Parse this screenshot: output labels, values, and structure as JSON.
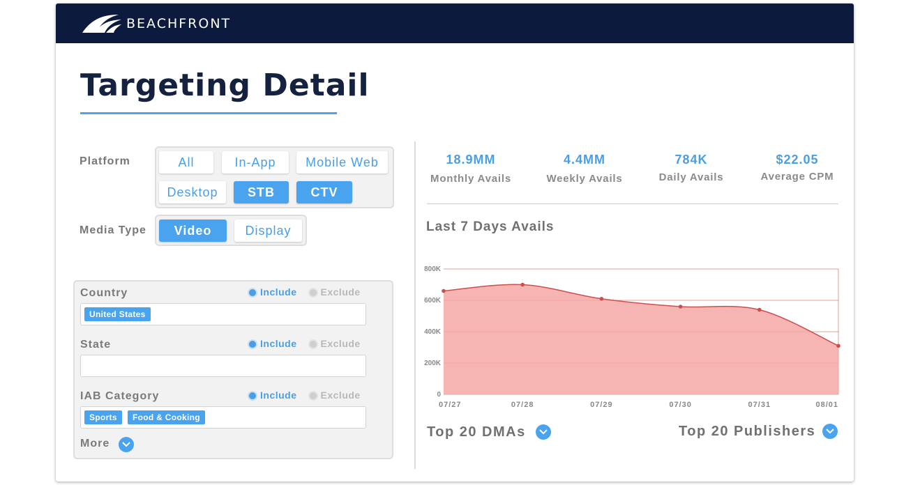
{
  "header": {
    "brand": "BEACHFRONT",
    "logo": "beachfront-logo-icon"
  },
  "page_title": "Targeting Detail",
  "platform": {
    "label": "Platform",
    "options": [
      {
        "label": "All",
        "selected": false
      },
      {
        "label": "In-App",
        "selected": false
      },
      {
        "label": "Mobile Web",
        "selected": false
      },
      {
        "label": "Desktop",
        "selected": false
      },
      {
        "label": "STB",
        "selected": true
      },
      {
        "label": "CTV",
        "selected": true
      }
    ]
  },
  "media_type": {
    "label": "Media Type",
    "options": [
      {
        "label": "Video",
        "selected": true
      },
      {
        "label": "Display",
        "selected": false
      }
    ]
  },
  "filters": [
    {
      "label": "Country",
      "include": "Include",
      "exclude": "Exclude",
      "mode": "include",
      "tags": [
        "United States"
      ]
    },
    {
      "label": "State",
      "include": "Include",
      "exclude": "Exclude",
      "mode": "include",
      "tags": []
    },
    {
      "label": "IAB Category",
      "include": "Include",
      "exclude": "Exclude",
      "mode": "include",
      "tags": [
        "Sports",
        "Food & Cooking"
      ]
    }
  ],
  "more_label": "More",
  "stats": [
    {
      "value": "18.9MM",
      "label": "Monthly Avails"
    },
    {
      "value": "4.4MM",
      "label": "Weekly Avails"
    },
    {
      "value": "784K",
      "label": "Daily Avails"
    },
    {
      "value": "$22.05",
      "label": "Average CPM"
    }
  ],
  "chart_title": "Last 7 Days Avails",
  "chart_data": {
    "type": "area",
    "title": "Last 7 Days Avails",
    "x": [
      "07/27",
      "07/28",
      "07/29",
      "07/30",
      "07/31",
      "08/01"
    ],
    "y_ticks": [
      "0",
      "200K",
      "400K",
      "600K",
      "800K"
    ],
    "ylim": [
      0,
      800000
    ],
    "grid": true,
    "series": [
      {
        "values": [
          660000,
          700000,
          610000,
          560000,
          540000,
          310000
        ]
      }
    ],
    "color": "#f4a7a5",
    "line_color": "#c9504f"
  },
  "links": {
    "dmas": "Top 20 DMAs",
    "publishers": "Top 20 Publishers"
  },
  "colors": {
    "accent": "#4aa3ef",
    "header_bg": "#0c1a3d",
    "title": "#14213f"
  }
}
